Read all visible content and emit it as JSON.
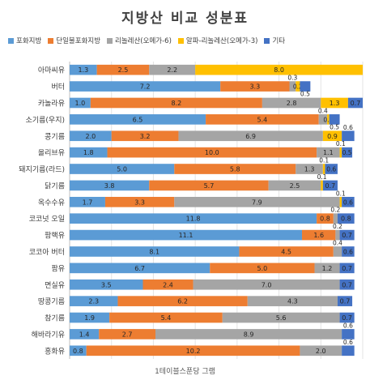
{
  "chart_data": {
    "type": "bar",
    "orientation": "horizontal",
    "stacked": true,
    "title": "지방산 비교 성분표",
    "xlabel": "1테이블스푼당 그램",
    "legend_position": "top",
    "categories": [
      "아마씨유",
      "버터",
      "카놀라유",
      "소기름(우지)",
      "콩기름",
      "올리브유",
      "돼지기름(라드)",
      "닭기름",
      "옥수수유",
      "코코넛 오일",
      "팜핵유",
      "코코아 버터",
      "팜유",
      "면실유",
      "땅콩기름",
      "참기름",
      "해바라기유",
      "홍화유"
    ],
    "series": [
      {
        "name": "포화지방",
        "color": "#5b9bd5",
        "values": [
          1.3,
          7.2,
          1.0,
          6.5,
          2.0,
          1.8,
          5.0,
          3.8,
          1.7,
          11.8,
          11.1,
          8.1,
          6.7,
          3.5,
          2.3,
          1.9,
          1.4,
          0.8
        ]
      },
      {
        "name": "단일불포화지방",
        "color": "#ed7d31",
        "values": [
          2.5,
          3.3,
          8.2,
          5.4,
          3.2,
          10.0,
          5.8,
          5.7,
          3.3,
          0.8,
          1.6,
          4.5,
          5.0,
          2.4,
          6.2,
          5.4,
          2.7,
          10.2
        ]
      },
      {
        "name": "리놀레산(오메가-6)",
        "color": "#a5a5a5",
        "values": [
          2.2,
          0.3,
          2.8,
          0.4,
          6.9,
          1.1,
          1.3,
          2.5,
          7.9,
          0.2,
          0.2,
          0.4,
          1.2,
          7.0,
          4.3,
          5.6,
          8.9,
          2.0
        ]
      },
      {
        "name": "알파-리놀레산(오메가-3)",
        "color": "#ffc000",
        "values": [
          8.0,
          0.2,
          1.3,
          0.1,
          0.9,
          0.1,
          0.1,
          0.1,
          0.1,
          0,
          0,
          0,
          0,
          0,
          0,
          0,
          0,
          0
        ]
      },
      {
        "name": "기타",
        "color": "#4472c4",
        "values": [
          0,
          0.5,
          0.7,
          0.5,
          0.6,
          0.5,
          0.6,
          0.7,
          0.6,
          0.8,
          0.7,
          0.6,
          0.7,
          0.7,
          0.7,
          0.7,
          0.6,
          0.6
        ]
      }
    ],
    "xlim": [
      0,
      14
    ],
    "grid": true
  }
}
